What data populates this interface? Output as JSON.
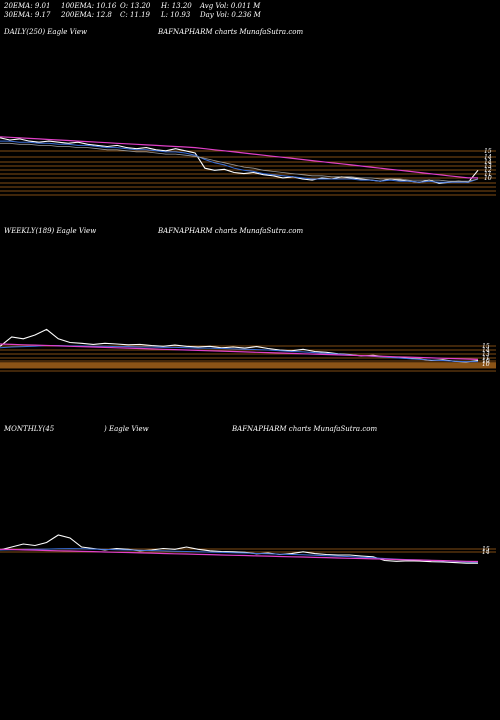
{
  "stats": {
    "ema20": "20EMA: 9.01",
    "ema30": "30EMA: 9.17",
    "ema100": "100EMA: 10.16",
    "ema200": "200EMA: 12.8",
    "open": "O: 13.20",
    "close": "C: 11.19",
    "high": "H: 13.20",
    "low": "L: 10.93",
    "avg_vol": "Avg Vol: 0.011  M",
    "day_vol": "Day Vol: 0.236  M"
  },
  "panels": [
    {
      "id": "daily",
      "label": "DAILY(250) Eagle   View",
      "source": "BAFNAPHARM charts MunafaSutra.com"
    },
    {
      "id": "weekly",
      "label": "WEEKLY(189) Eagle   View",
      "source": "BAFNAPHARM charts MunafaSutra.com"
    },
    {
      "id": "monthly",
      "label": "MONTHLY(45",
      "label2": ") Eagle   View",
      "source": "BAFNAPHARM charts MunafaSutra.com"
    }
  ],
  "colors": {
    "background": "#000000",
    "price": "#ffffff",
    "ema_short": "#3a6fd8",
    "ema_mid": "#9a9a9a",
    "ema_long": "#e040c8",
    "levels": "#c87820"
  },
  "chart_data": [
    {
      "type": "line",
      "name": "daily",
      "ylim": [
        8,
        14
      ],
      "y_ticks": [
        "15",
        "14",
        "14",
        "13",
        "12",
        "11",
        "10"
      ],
      "series": [
        {
          "role": "price",
          "values": [
            14.2,
            14.0,
            14.1,
            13.9,
            13.8,
            13.9,
            13.8,
            13.7,
            13.8,
            13.6,
            13.5,
            13.4,
            13.5,
            13.3,
            13.2,
            13.3,
            13.1,
            13.0,
            13.2,
            13.0,
            12.8,
            11.4,
            11.2,
            11.3,
            11.0,
            10.9,
            11.0,
            10.8,
            10.7,
            10.5,
            10.6,
            10.4,
            10.3,
            10.5,
            10.4,
            10.6,
            10.5,
            10.4,
            10.3,
            10.2,
            10.4,
            10.3,
            10.2,
            10.1,
            10.3,
            10.0,
            10.1,
            10.2,
            10.1,
            11.2
          ]
        },
        {
          "role": "ema_short",
          "values": [
            13.9,
            13.9,
            13.8,
            13.8,
            13.7,
            13.7,
            13.6,
            13.6,
            13.5,
            13.5,
            13.4,
            13.3,
            13.3,
            13.2,
            13.1,
            13.1,
            13.0,
            12.9,
            12.9,
            12.8,
            12.6,
            12.2,
            11.9,
            11.7,
            11.4,
            11.2,
            11.1,
            10.9,
            10.8,
            10.7,
            10.6,
            10.5,
            10.4,
            10.4,
            10.4,
            10.4,
            10.4,
            10.3,
            10.3,
            10.2,
            10.3,
            10.2,
            10.2,
            10.1,
            10.2,
            10.1,
            10.1,
            10.1,
            10.1,
            10.4
          ]
        },
        {
          "role": "ema_mid",
          "values": [
            13.7,
            13.7,
            13.6,
            13.6,
            13.5,
            13.5,
            13.4,
            13.4,
            13.3,
            13.3,
            13.2,
            13.1,
            13.1,
            13.0,
            12.9,
            12.9,
            12.8,
            12.7,
            12.7,
            12.6,
            12.5,
            12.3,
            12.1,
            11.9,
            11.7,
            11.5,
            11.4,
            11.2,
            11.1,
            11.0,
            10.9,
            10.8,
            10.7,
            10.7,
            10.6,
            10.6,
            10.6,
            10.5,
            10.5,
            10.4,
            10.4,
            10.4,
            10.3,
            10.3,
            10.3,
            10.3,
            10.2,
            10.2,
            10.2,
            10.4
          ]
        },
        {
          "role": "ema_long",
          "values": [
            14.3,
            14.25,
            14.2,
            14.15,
            14.1,
            14.05,
            14.0,
            13.95,
            13.9,
            13.85,
            13.8,
            13.75,
            13.7,
            13.65,
            13.6,
            13.55,
            13.5,
            13.45,
            13.4,
            13.35,
            13.3,
            13.2,
            13.1,
            13.0,
            12.9,
            12.8,
            12.7,
            12.6,
            12.5,
            12.4,
            12.3,
            12.2,
            12.1,
            12.0,
            11.9,
            11.8,
            11.7,
            11.6,
            11.5,
            11.4,
            11.3,
            11.2,
            11.1,
            11.0,
            10.9,
            10.8,
            10.7,
            10.6,
            10.5,
            10.5
          ]
        }
      ]
    },
    {
      "type": "line",
      "name": "weekly",
      "ylim": [
        6,
        22
      ],
      "y_ticks": [
        "15",
        "14",
        "13",
        "11",
        "10",
        "10"
      ],
      "series": [
        {
          "role": "price",
          "values": [
            15.0,
            17.5,
            17.0,
            18.0,
            19.5,
            17.0,
            16.0,
            15.8,
            15.5,
            15.8,
            15.6,
            15.4,
            15.5,
            15.2,
            15.0,
            15.3,
            15.0,
            14.8,
            15.0,
            14.6,
            14.8,
            14.5,
            14.9,
            14.4,
            14.0,
            13.8,
            14.2,
            13.6,
            13.4,
            13.0,
            12.8,
            12.4,
            12.6,
            12.2,
            12.0,
            11.8,
            11.6,
            11.2,
            11.4,
            11.0,
            10.8,
            11.2
          ]
        },
        {
          "role": "ema_short",
          "values": [
            14.6,
            14.8,
            14.9,
            15.0,
            15.2,
            15.2,
            15.1,
            15.1,
            15.0,
            15.0,
            14.9,
            14.9,
            14.8,
            14.8,
            14.7,
            14.7,
            14.6,
            14.5,
            14.5,
            14.4,
            14.3,
            14.2,
            14.1,
            14.0,
            13.8,
            13.6,
            13.5,
            13.3,
            13.1,
            12.9,
            12.7,
            12.5,
            12.3,
            12.1,
            11.9,
            11.7,
            11.5,
            11.3,
            11.2,
            11.0,
            10.9,
            10.9
          ]
        },
        {
          "role": "ema_long",
          "values": [
            15.6,
            15.5,
            15.4,
            15.3,
            15.2,
            15.1,
            15.0,
            14.9,
            14.8,
            14.7,
            14.6,
            14.5,
            14.4,
            14.3,
            14.2,
            14.1,
            14.0,
            13.9,
            13.8,
            13.7,
            13.6,
            13.5,
            13.4,
            13.3,
            13.2,
            13.1,
            13.0,
            12.9,
            12.8,
            12.7,
            12.6,
            12.5,
            12.4,
            12.3,
            12.2,
            12.1,
            12.0,
            11.9,
            11.8,
            11.7,
            11.6,
            11.5
          ]
        }
      ]
    },
    {
      "type": "line",
      "name": "monthly",
      "ylim": [
        0,
        40
      ],
      "y_ticks": [
        "15",
        "14"
      ],
      "series": [
        {
          "role": "price",
          "values": [
            20.0,
            22.0,
            24.0,
            23.0,
            25.0,
            30.0,
            28.0,
            22.0,
            21.0,
            20.0,
            21.0,
            20.5,
            19.5,
            20.0,
            21.0,
            20.5,
            22.0,
            20.5,
            19.5,
            19.0,
            18.8,
            18.5,
            17.5,
            18.0,
            17.0,
            17.6,
            18.8,
            17.6,
            17.0,
            16.7,
            16.7,
            16.0,
            15.5,
            13.0,
            12.5,
            12.8,
            12.6,
            12.2,
            12.0,
            11.6,
            11.2,
            11.2
          ]
        },
        {
          "role": "ema_short",
          "values": [
            20.0,
            20.2,
            20.4,
            20.5,
            20.6,
            20.8,
            20.9,
            20.8,
            20.6,
            20.4,
            20.2,
            20.0,
            19.8,
            19.6,
            19.4,
            19.2,
            19.0,
            18.8,
            18.6,
            18.4,
            18.2,
            18.0,
            17.7,
            17.5,
            17.2,
            17.0,
            16.8,
            16.5,
            16.2,
            15.9,
            15.6,
            15.2,
            14.8,
            14.3,
            13.9,
            13.6,
            13.3,
            13.0,
            12.7,
            12.4,
            12.1,
            11.9
          ]
        },
        {
          "role": "ema_long",
          "values": [
            20.5,
            20.3,
            20.1,
            19.9,
            19.7,
            19.5,
            19.3,
            19.1,
            18.9,
            18.7,
            18.5,
            18.3,
            18.1,
            17.9,
            17.7,
            17.5,
            17.3,
            17.1,
            16.9,
            16.7,
            16.5,
            16.3,
            16.1,
            15.9,
            15.7,
            15.5,
            15.3,
            15.1,
            14.9,
            14.7,
            14.5,
            14.3,
            14.1,
            13.9,
            13.7,
            13.5,
            13.3,
            13.1,
            12.9,
            12.7,
            12.5,
            12.3
          ]
        }
      ]
    }
  ]
}
